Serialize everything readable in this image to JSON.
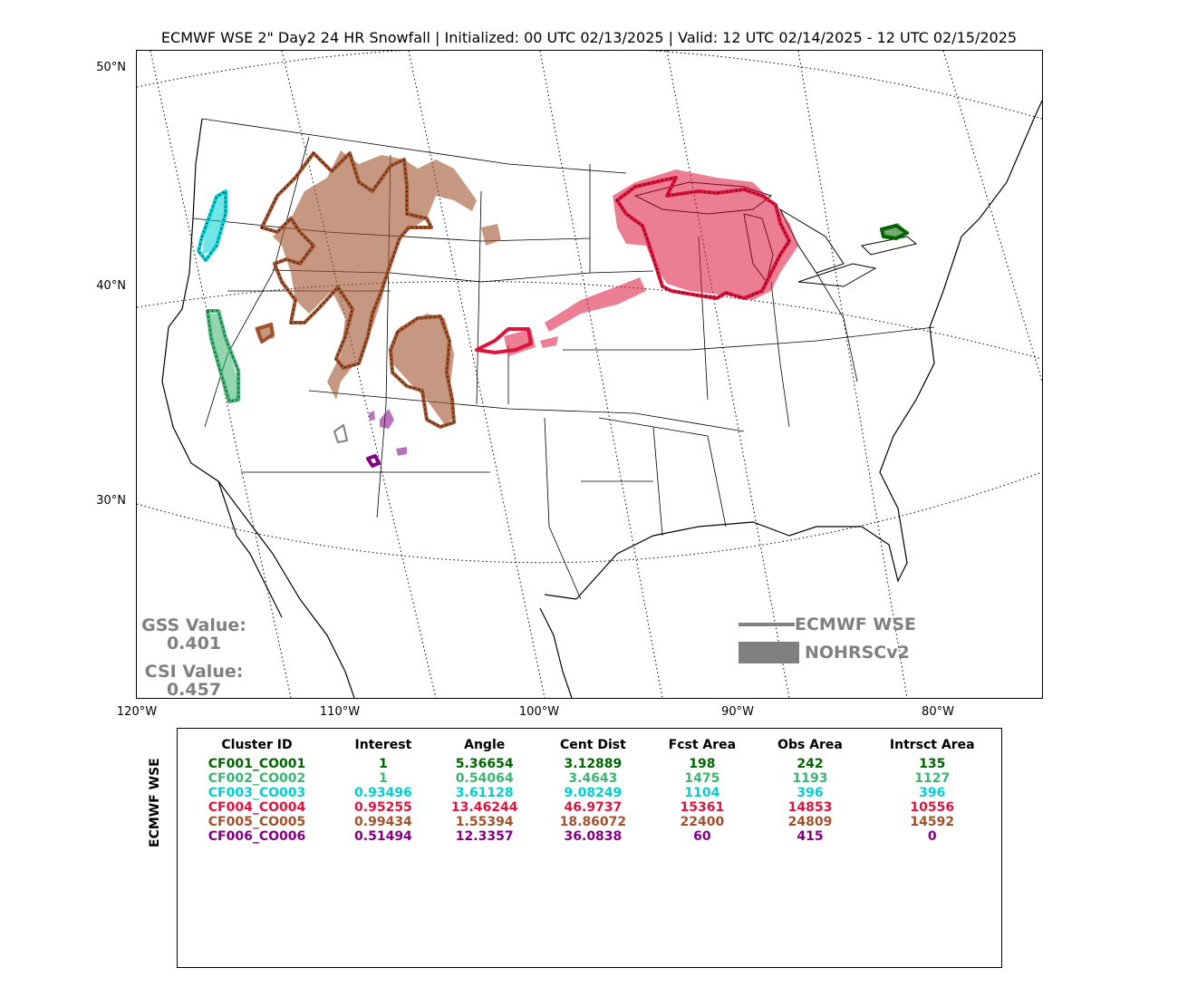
{
  "title": "ECMWF WSE 2\" Day2 24 HR Snowfall | Initialized: 00 UTC 02/13/2025 | Valid: 12 UTC 02/14/2025 - 12 UTC 02/15/2025",
  "lat_labels": [
    "50°N",
    "40°N",
    "30°N"
  ],
  "lon_labels": [
    "120°W",
    "110°W",
    "100°W",
    "90°W",
    "80°W"
  ],
  "scores": {
    "gss_label": "GSS Value:",
    "gss_value": "0.401",
    "csi_label": "CSI Value:",
    "csi_value": "0.457"
  },
  "legend": {
    "forecast": "ECMWF WSE",
    "observed": "NOHRSCv2"
  },
  "colors": {
    "score_text": "#808080",
    "CF001": "#006400",
    "CF002": "#3cb371",
    "CF003": "#00ced1",
    "CF004": "#dc143c",
    "CF005": "#a0522d",
    "CF006": "#800080"
  },
  "table": {
    "side_label": "ECMWF WSE",
    "headers": [
      "Cluster ID",
      "Interest",
      "Angle",
      "Cent Dist",
      "Fcst Area",
      "Obs Area",
      "Intrsct Area"
    ],
    "rows": [
      {
        "color": "#006400",
        "cells": [
          "CF001_CO001",
          "1",
          "5.36654",
          "3.12889",
          "198",
          "242",
          "135"
        ]
      },
      {
        "color": "#3cb371",
        "cells": [
          "CF002_CO002",
          "1",
          "0.54064",
          "3.4643",
          "1475",
          "1193",
          "1127"
        ]
      },
      {
        "color": "#00ced1",
        "cells": [
          "CF003_CO003",
          "0.93496",
          "3.61128",
          "9.08249",
          "1104",
          "396",
          "396"
        ]
      },
      {
        "color": "#dc143c",
        "cells": [
          "CF004_CO004",
          "0.95255",
          "13.46244",
          "46.9737",
          "15361",
          "14853",
          "10556"
        ]
      },
      {
        "color": "#a0522d",
        "cells": [
          "CF005_CO005",
          "0.99434",
          "1.55394",
          "18.86072",
          "22400",
          "24809",
          "14592"
        ]
      },
      {
        "color": "#800080",
        "cells": [
          "CF006_CO006",
          "0.51494",
          "12.3357",
          "36.0838",
          "60",
          "415",
          "0"
        ]
      }
    ]
  }
}
